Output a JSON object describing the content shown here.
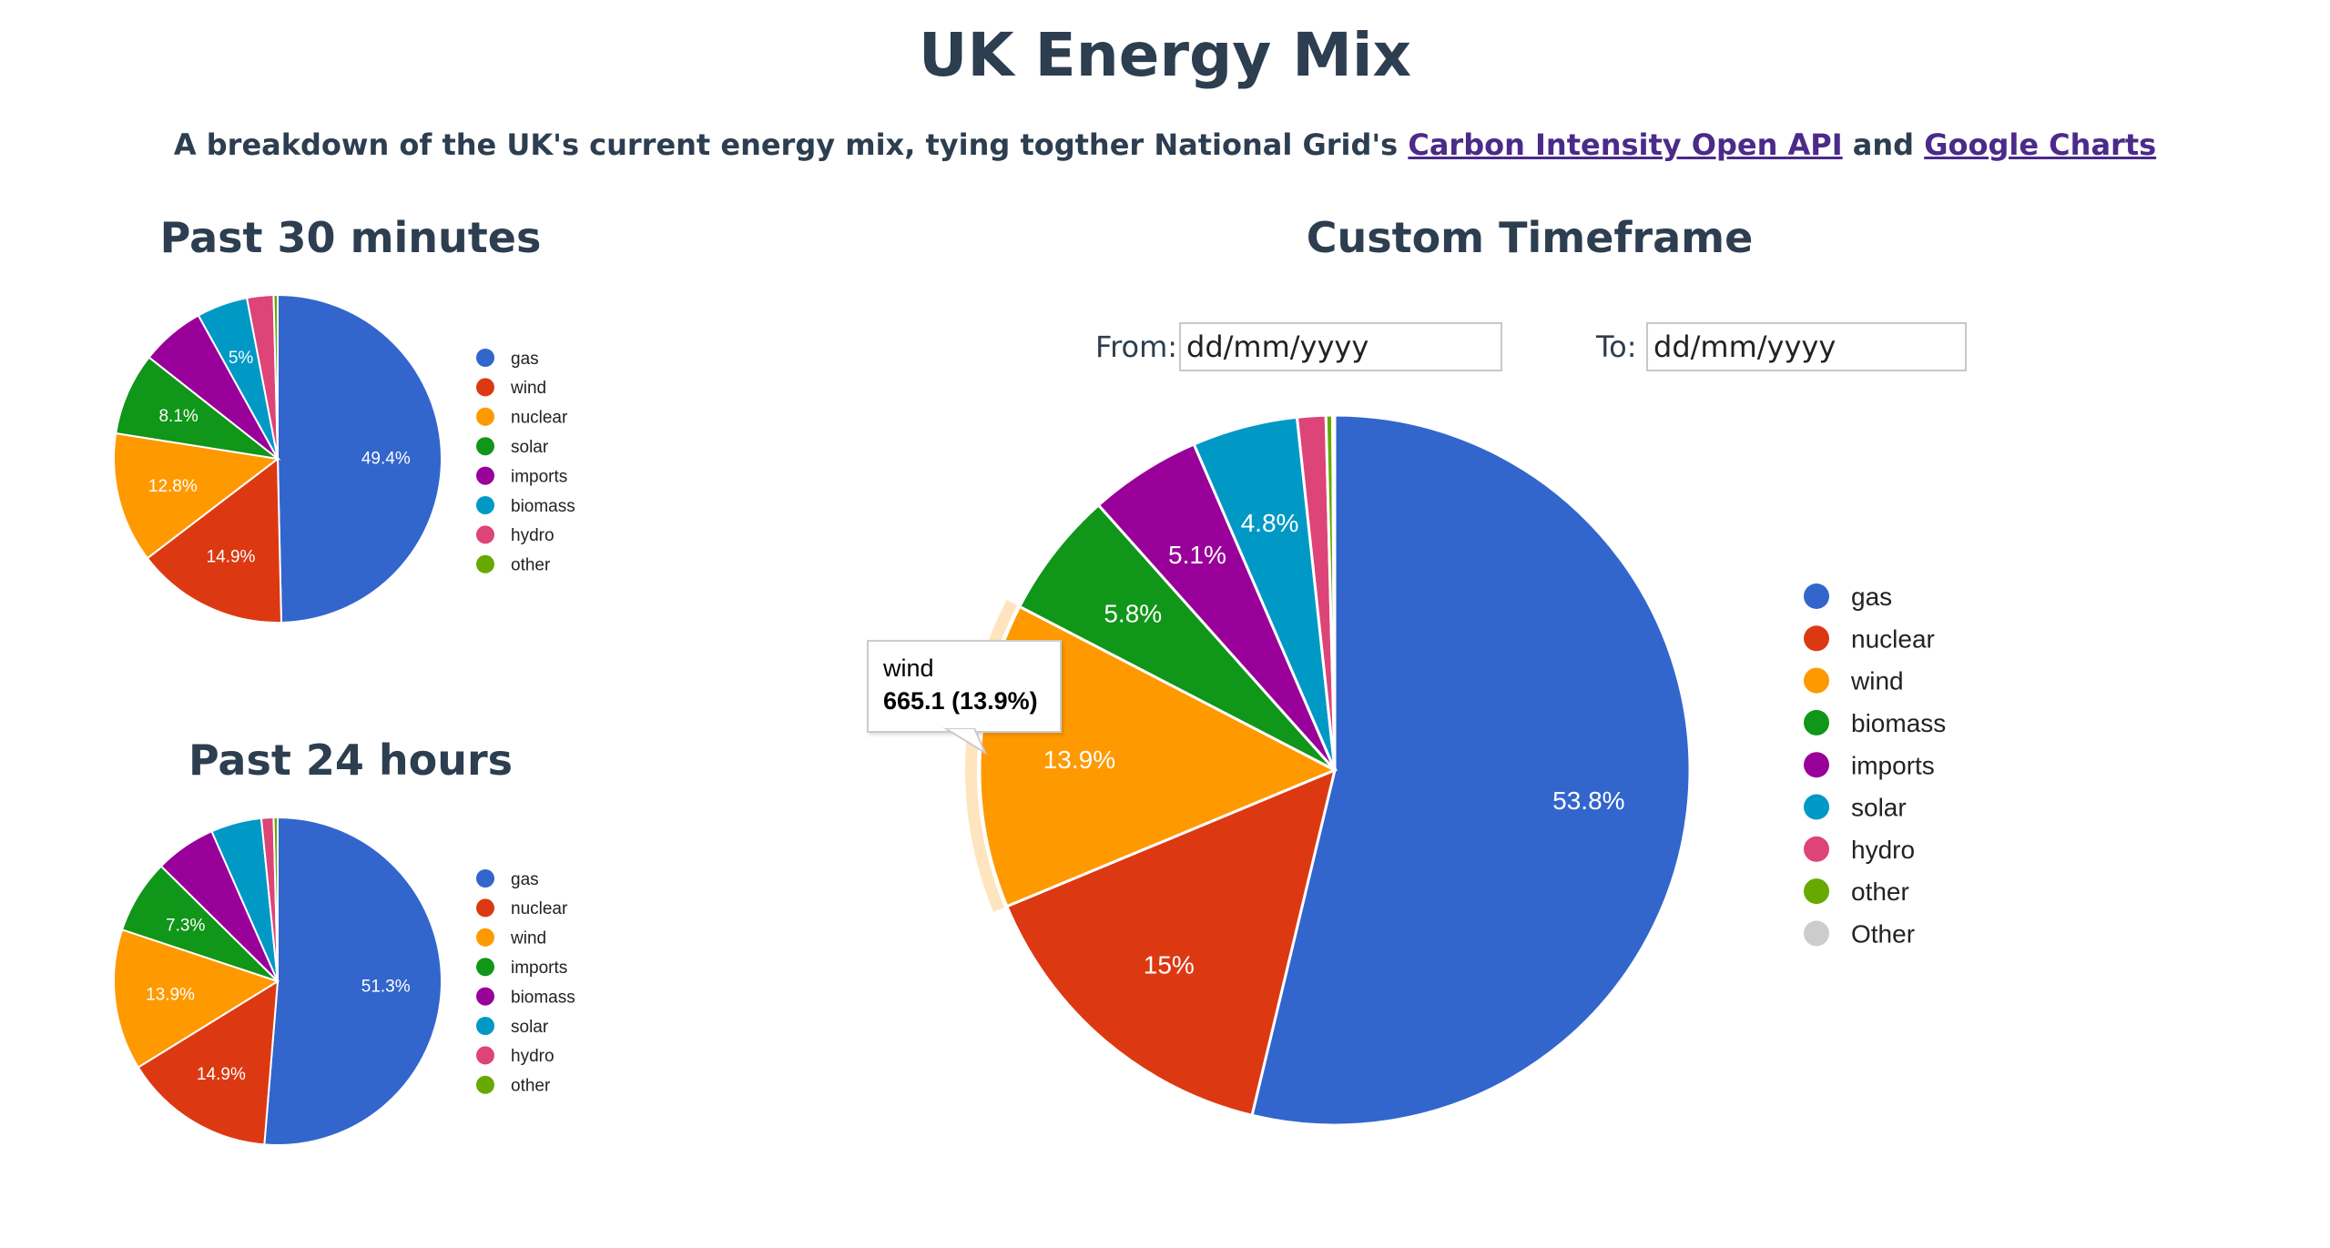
{
  "header": {
    "title": "UK Energy Mix",
    "subtitle_text": "A breakdown of the UK's current energy mix, tying togther National Grid's",
    "link1": "Carbon Intensity Open API",
    "and_text": "and",
    "link2": "Google Charts"
  },
  "sections": {
    "past30_title": "Past 30 minutes",
    "past24_title": "Past 24 hours",
    "custom_title": "Custom Timeframe"
  },
  "custom_range": {
    "from_label": "From:",
    "from_value": "dd/mm/yyyy",
    "to_label": "To:",
    "to_value": "dd/mm/yyyy"
  },
  "tooltip": {
    "name": "wind",
    "value": "665.1 (13.9%)"
  },
  "colors": {
    "blue": "#3366cc",
    "red": "#dc3912",
    "orange": "#ff9900",
    "green": "#109618",
    "purple": "#990099",
    "teal": "#0099c6",
    "pink": "#dd4477",
    "lime": "#66aa00",
    "grey": "#cccccc"
  },
  "chart_data": [
    {
      "type": "pie",
      "title": "Past 30 minutes",
      "legend_position": "right",
      "categories": [
        "gas",
        "wind",
        "nuclear",
        "solar",
        "imports",
        "biomass",
        "hydro",
        "other"
      ],
      "values": [
        49.4,
        14.9,
        12.8,
        8.1,
        6.3,
        5.0,
        2.6,
        0.4
      ],
      "labels": [
        "49.4%",
        "14.9%",
        "12.8%",
        "8.1%",
        "",
        "5%",
        "",
        ""
      ],
      "colors": [
        "#3366cc",
        "#dc3912",
        "#ff9900",
        "#109618",
        "#990099",
        "#0099c6",
        "#dd4477",
        "#66aa00"
      ]
    },
    {
      "type": "pie",
      "title": "Past 24 hours",
      "legend_position": "right",
      "categories": [
        "gas",
        "nuclear",
        "wind",
        "imports",
        "biomass",
        "solar",
        "hydro",
        "other"
      ],
      "values": [
        51.3,
        14.9,
        13.9,
        7.3,
        6.0,
        5.0,
        1.2,
        0.4
      ],
      "labels": [
        "51.3%",
        "14.9%",
        "13.9%",
        "7.3%",
        "",
        "",
        "",
        ""
      ],
      "colors": [
        "#3366cc",
        "#dc3912",
        "#ff9900",
        "#109618",
        "#990099",
        "#0099c6",
        "#dd4477",
        "#66aa00"
      ]
    },
    {
      "type": "pie",
      "title": "Custom Timeframe",
      "legend_position": "right",
      "categories": [
        "gas",
        "nuclear",
        "wind",
        "biomass",
        "imports",
        "solar",
        "hydro",
        "other",
        "Other"
      ],
      "values": [
        53.8,
        15.0,
        13.9,
        5.8,
        5.1,
        4.8,
        1.3,
        0.3,
        0.1
      ],
      "labels": [
        "53.8%",
        "15%",
        "13.9%",
        "5.8%",
        "5.1%",
        "4.8%",
        "",
        "",
        ""
      ],
      "colors": [
        "#3366cc",
        "#dc3912",
        "#ff9900",
        "#109618",
        "#990099",
        "#0099c6",
        "#dd4477",
        "#66aa00",
        "#cccccc"
      ],
      "highlighted": "wind"
    }
  ]
}
